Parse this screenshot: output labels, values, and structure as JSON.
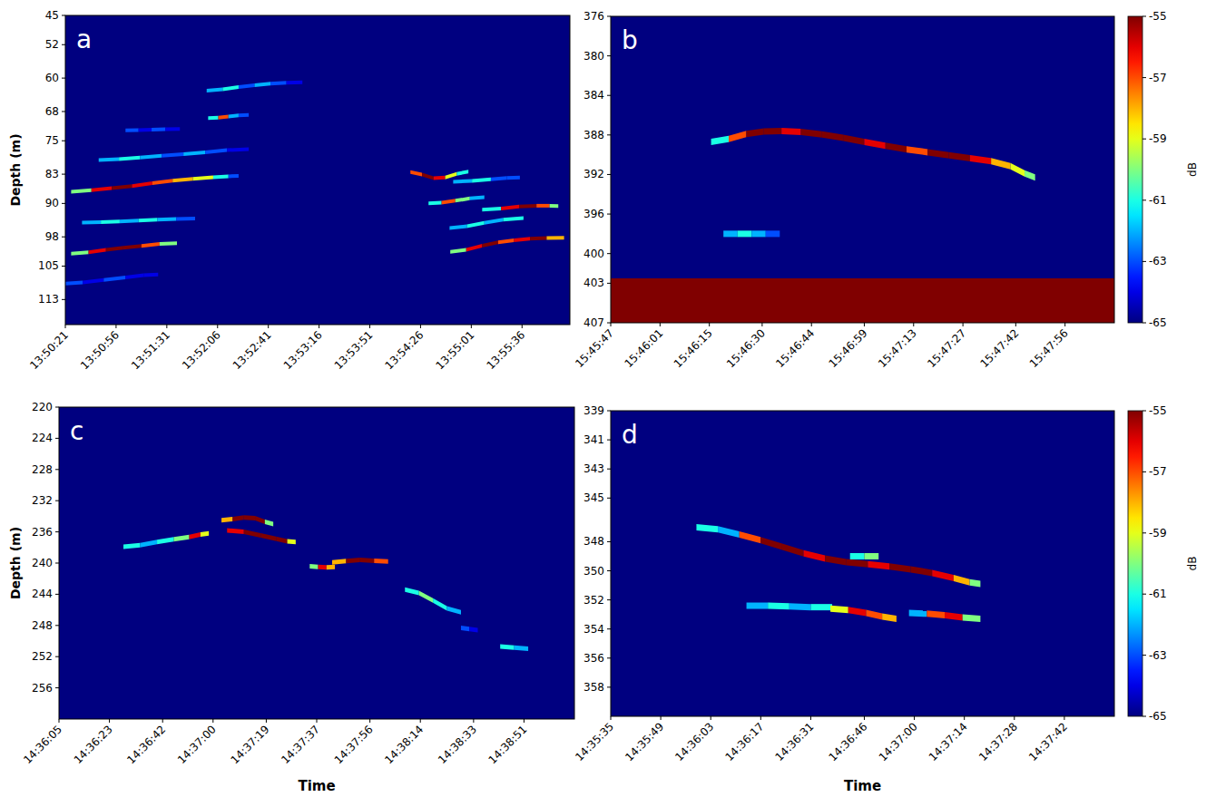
{
  "chart_data": [
    {
      "type": "echogram",
      "panel": "a",
      "ylabel": "Depth (m)",
      "xlim": [
        49821,
        50169
      ],
      "ylim": [
        45,
        119
      ],
      "xticks": [
        {
          "value": 49821,
          "label": "13:50:21"
        },
        {
          "value": 49856,
          "label": "13:50:56"
        },
        {
          "value": 49891,
          "label": "13:51:31"
        },
        {
          "value": 49926,
          "label": "13:52:06"
        },
        {
          "value": 49961,
          "label": "13:52:41"
        },
        {
          "value": 49996,
          "label": "13:53:16"
        },
        {
          "value": 50031,
          "label": "13:53:51"
        },
        {
          "value": 50066,
          "label": "13:54:26"
        },
        {
          "value": 50101,
          "label": "13:55:01"
        },
        {
          "value": 50136,
          "label": "13:55:36"
        }
      ],
      "yticks": [
        45,
        52,
        60,
        68,
        75,
        83,
        90,
        98,
        105,
        113
      ],
      "colorbar": {
        "range": [
          -65,
          -55
        ]
      },
      "targets": [
        {
          "x": [
            49924,
            49935,
            49946,
            49957,
            49968,
            49979
          ],
          "depth": [
            63.0,
            62.4,
            61.9,
            61.5,
            61.2,
            61.0
          ],
          "values": [
            -62,
            -61,
            -63,
            -62,
            -63,
            -64
          ]
        },
        {
          "x": [
            49923,
            49930,
            49937,
            49944
          ],
          "depth": [
            69.6,
            69.3,
            69.1,
            68.8
          ],
          "values": [
            -61,
            -57,
            -62,
            -63
          ]
        },
        {
          "x": [
            49867,
            49876,
            49885,
            49895
          ],
          "depth": [
            72.5,
            72.4,
            72.3,
            72.2
          ],
          "values": [
            -63,
            -64,
            -63,
            -64
          ]
        },
        {
          "x": [
            49851,
            49865,
            49880,
            49895,
            49910,
            49925,
            49940
          ],
          "depth": [
            79.6,
            79.2,
            78.8,
            78.4,
            78.0,
            77.5,
            77.0
          ],
          "values": [
            -62,
            -61,
            -62,
            -63,
            -62,
            -63,
            -64
          ]
        },
        {
          "x": [
            49832,
            49846,
            49860,
            49874,
            49888,
            49902,
            49916,
            49930,
            49937
          ],
          "depth": [
            87.2,
            86.5,
            86.2,
            85.5,
            84.8,
            84.3,
            83.9,
            83.6,
            83.4
          ],
          "values": [
            -60,
            -56,
            -55,
            -56,
            -57,
            -58,
            -59,
            -61,
            -63
          ]
        },
        {
          "x": [
            49839,
            49852,
            49865,
            49878,
            49891,
            49904
          ],
          "depth": [
            94.6,
            94.4,
            94.2,
            94.0,
            93.8,
            93.6
          ],
          "values": [
            -62,
            -61,
            -62,
            -61,
            -62,
            -63
          ]
        },
        {
          "x": [
            49831,
            49843,
            49855,
            49867,
            49880,
            49892
          ],
          "depth": [
            102.0,
            101.4,
            100.8,
            100.4,
            99.9,
            99.5
          ],
          "values": [
            -60,
            -56,
            -55,
            -55,
            -57,
            -60
          ]
        },
        {
          "x": [
            49826,
            49840,
            49855,
            49870,
            49880
          ],
          "depth": [
            109.2,
            108.6,
            108.0,
            107.4,
            107.0
          ],
          "values": [
            -63,
            -64,
            -63,
            -64,
            -64
          ]
        },
        {
          "x": [
            50063,
            50071,
            50079,
            50087,
            50095
          ],
          "depth": [
            82.5,
            83.7,
            84.2,
            83.4,
            82.4
          ],
          "values": [
            -57,
            -55,
            -56,
            -59,
            -61
          ]
        },
        {
          "x": [
            50076,
            50085,
            50095,
            50105
          ],
          "depth": [
            90.0,
            89.6,
            89.1,
            88.5
          ],
          "values": [
            -61,
            -57,
            -60,
            -62
          ]
        },
        {
          "x": [
            50092,
            50104,
            50116,
            50130
          ],
          "depth": [
            95.9,
            95.0,
            94.3,
            93.5
          ],
          "values": [
            -62,
            -61,
            -62,
            -61
          ]
        },
        {
          "x": [
            50092,
            50103,
            50114,
            50125,
            50136,
            50147,
            50159
          ],
          "depth": [
            101.6,
            100.6,
            99.6,
            99.0,
            98.6,
            98.3,
            98.2
          ],
          "values": [
            -60,
            -56,
            -55,
            -57,
            -56,
            -55,
            -58
          ]
        },
        {
          "x": [
            50095,
            50108,
            50121,
            50130
          ],
          "depth": [
            84.8,
            84.4,
            84.0,
            83.8
          ],
          "values": [
            -62,
            -61,
            -63,
            -63
          ]
        },
        {
          "x": [
            50115,
            50128,
            50140,
            50152,
            50158
          ],
          "depth": [
            91.5,
            90.9,
            90.6,
            90.5,
            90.6
          ],
          "values": [
            -61,
            -56,
            -55,
            -57,
            -60
          ]
        }
      ]
    },
    {
      "type": "echogram",
      "panel": "b",
      "xlim": [
        56747,
        56890
      ],
      "ylim": [
        376,
        407
      ],
      "xticks": [
        {
          "value": 56747,
          "label": "15:45:47"
        },
        {
          "value": 56761,
          "label": "15:46:01"
        },
        {
          "value": 56775,
          "label": "15:46:15"
        },
        {
          "value": 56790,
          "label": "15:46:30"
        },
        {
          "value": 56804,
          "label": "15:46:44"
        },
        {
          "value": 56819,
          "label": "15:46:59"
        },
        {
          "value": 56833,
          "label": "15:47:13"
        },
        {
          "value": 56847,
          "label": "15:47:27"
        },
        {
          "value": 56862,
          "label": "15:47:42"
        },
        {
          "value": 56876,
          "label": "15:47:56"
        }
      ],
      "yticks": [
        376,
        380,
        384,
        388,
        392,
        396,
        400,
        403,
        407
      ],
      "colorbar": {
        "range": [
          -65,
          -55
        ],
        "ticks": [
          -55,
          -57,
          -59,
          -61,
          -63,
          -65
        ],
        "label": "dB"
      },
      "seabed": {
        "depth": 402.5,
        "value": -55
      },
      "targets": [
        {
          "x": [
            56778,
            56783,
            56788,
            56793,
            56798,
            56804,
            56810,
            56816,
            56822,
            56828,
            56834,
            56840,
            56846,
            56852,
            56858,
            56863,
            56866
          ],
          "depth": [
            388.7,
            388.1,
            387.7,
            387.6,
            387.6,
            387.8,
            388.1,
            388.5,
            388.9,
            389.3,
            389.6,
            389.9,
            390.2,
            390.5,
            390.8,
            391.5,
            392.3
          ],
          "values": [
            -61,
            -57,
            -55,
            -55,
            -56,
            -55,
            -55,
            -55,
            -56,
            -55,
            -57,
            -55,
            -55,
            -56,
            -58,
            -59,
            -60
          ]
        },
        {
          "x": [
            56781,
            56785,
            56789,
            56793
          ],
          "depth": [
            398.0,
            398.0,
            398.0,
            398.0
          ],
          "values": [
            -62,
            -61,
            -62,
            -63
          ]
        }
      ]
    },
    {
      "type": "echogram",
      "panel": "c",
      "ylabel": "Depth (m)",
      "xlabel": "Time",
      "xlim": [
        52565,
        52749
      ],
      "ylim": [
        220,
        260
      ],
      "xticks": [
        {
          "value": 52565,
          "label": "14:36:05"
        },
        {
          "value": 52583,
          "label": "14:36:23"
        },
        {
          "value": 52602,
          "label": "14:36:42"
        },
        {
          "value": 52620,
          "label": "14:37:00"
        },
        {
          "value": 52639,
          "label": "14:37:19"
        },
        {
          "value": 52657,
          "label": "14:37:37"
        },
        {
          "value": 52676,
          "label": "14:37:56"
        },
        {
          "value": 52694,
          "label": "14:38:14"
        },
        {
          "value": 52713,
          "label": "14:38:33"
        },
        {
          "value": 52731,
          "label": "14:38:51"
        }
      ],
      "yticks": [
        220,
        224,
        228,
        232,
        236,
        240,
        244,
        248,
        252,
        256
      ],
      "colorbar": {
        "range": [
          -65,
          -55
        ]
      },
      "targets": [
        {
          "x": [
            52591,
            52597,
            52603,
            52609,
            52614,
            52617
          ],
          "depth": [
            237.9,
            237.5,
            237.1,
            236.8,
            236.5,
            236.2
          ],
          "values": [
            -61,
            -62,
            -61,
            -60,
            -56,
            -59
          ]
        },
        {
          "x": [
            52625,
            52629,
            52633,
            52637,
            52640
          ],
          "depth": [
            234.5,
            234.2,
            234.1,
            234.4,
            235.0
          ],
          "values": [
            -58,
            -55,
            -55,
            -55,
            -60
          ]
        },
        {
          "x": [
            52628,
            52634,
            52640,
            52645,
            52648
          ],
          "depth": [
            235.8,
            236.2,
            236.7,
            237.1,
            237.3
          ],
          "values": [
            -56,
            -55,
            -55,
            -55,
            -59
          ]
        },
        {
          "x": [
            52656,
            52659,
            52662
          ],
          "depth": [
            240.4,
            240.6,
            240.5
          ],
          "values": [
            -60,
            -56,
            -58
          ]
        },
        {
          "x": [
            52665,
            52670,
            52675,
            52680
          ],
          "depth": [
            239.9,
            239.6,
            239.6,
            239.8
          ],
          "values": [
            -58,
            -55,
            -55,
            -57
          ]
        },
        {
          "x": [
            52691,
            52696,
            52701,
            52706
          ],
          "depth": [
            243.4,
            244.3,
            245.3,
            246.3
          ],
          "values": [
            -61,
            -60,
            -61,
            -62
          ]
        },
        {
          "x": [
            52710,
            52713
          ],
          "depth": [
            248.3,
            248.6
          ],
          "values": [
            -63,
            -64
          ]
        },
        {
          "x": [
            52725,
            52730
          ],
          "depth": [
            250.7,
            251.0
          ],
          "values": [
            -61,
            -62
          ]
        }
      ]
    },
    {
      "type": "echogram",
      "panel": "d",
      "xlabel": "Time",
      "xlim": [
        52535,
        52676
      ],
      "ylim": [
        339,
        360
      ],
      "xticks": [
        {
          "value": 52535,
          "label": "14:35:35"
        },
        {
          "value": 52549,
          "label": "14:35:49"
        },
        {
          "value": 52563,
          "label": "14:36:03"
        },
        {
          "value": 52577,
          "label": "14:36:17"
        },
        {
          "value": 52591,
          "label": "14:36:31"
        },
        {
          "value": 52606,
          "label": "14:36:46"
        },
        {
          "value": 52620,
          "label": "14:37:00"
        },
        {
          "value": 52634,
          "label": "14:37:14"
        },
        {
          "value": 52648,
          "label": "14:37:28"
        },
        {
          "value": 52662,
          "label": "14:37:42"
        }
      ],
      "yticks": [
        339,
        341,
        343,
        345,
        348,
        350,
        352,
        354,
        356,
        358
      ],
      "colorbar": {
        "range": [
          -65,
          -55
        ],
        "ticks": [
          -55,
          -57,
          -59,
          -61,
          -63,
          -65
        ],
        "label": "dB"
      },
      "targets": [
        {
          "x": [
            52562,
            52568,
            52574,
            52580,
            52586,
            52592,
            52598,
            52604,
            52610,
            52616,
            52622,
            52628,
            52634,
            52637
          ],
          "depth": [
            347.0,
            347.3,
            347.7,
            348.1,
            348.6,
            349.0,
            349.3,
            349.5,
            349.6,
            349.8,
            350.0,
            350.3,
            350.7,
            350.9
          ],
          "values": [
            -61,
            -62,
            -57,
            -55,
            -55,
            -56,
            -55,
            -55,
            -56,
            -55,
            -55,
            -56,
            -58,
            -60
          ]
        },
        {
          "x": [
            52576,
            52582,
            52588,
            52594
          ],
          "depth": [
            352.4,
            352.4,
            352.5,
            352.5
          ],
          "values": [
            -62,
            -61,
            -62,
            -61
          ]
        },
        {
          "x": [
            52599,
            52604,
            52609,
            52613
          ],
          "depth": [
            352.6,
            352.8,
            353.0,
            353.3
          ],
          "values": [
            -59,
            -56,
            -57,
            -58
          ]
        },
        {
          "x": [
            52621,
            52626,
            52631,
            52636
          ],
          "depth": [
            352.9,
            353.0,
            353.1,
            353.3
          ],
          "values": [
            -62,
            -57,
            -56,
            -60
          ]
        },
        {
          "x": [
            52604,
            52608
          ],
          "depth": [
            349.0,
            349.0
          ],
          "values": [
            -61,
            -60
          ]
        }
      ]
    }
  ]
}
